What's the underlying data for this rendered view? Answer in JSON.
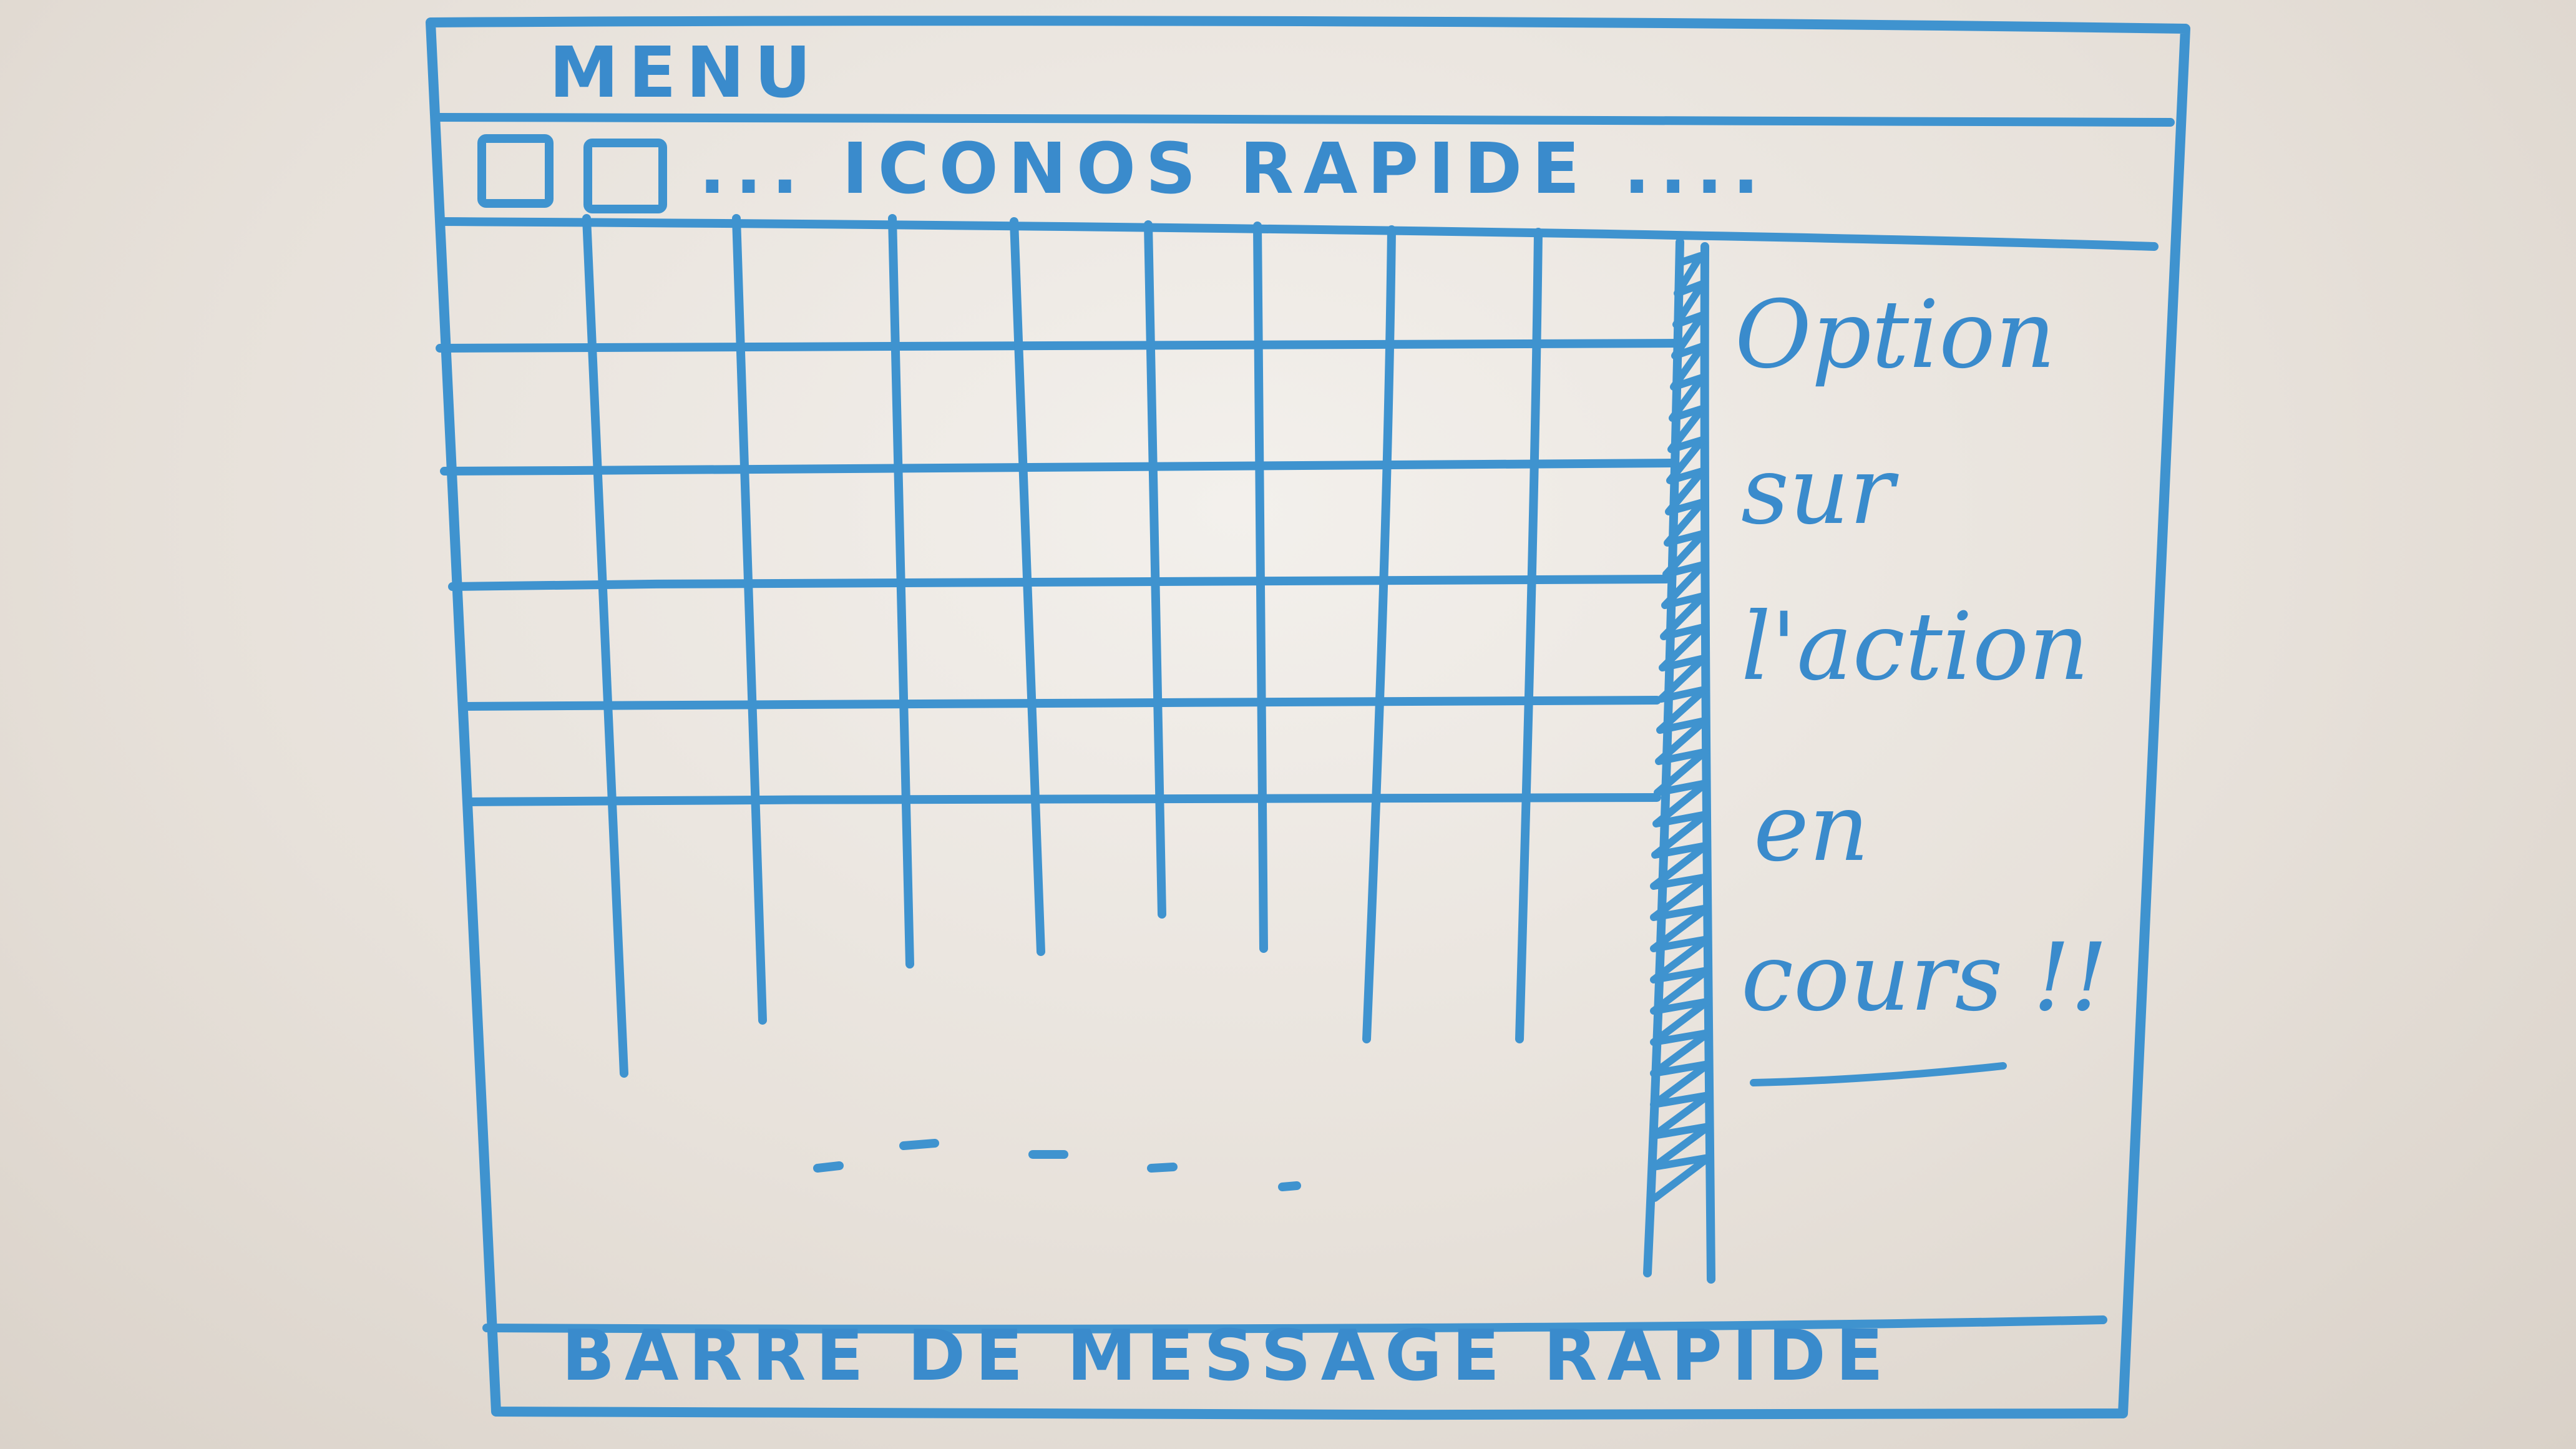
{
  "menu_bar": {
    "label": "MENU"
  },
  "toolbar": {
    "label": "... ICONOS RAPIDE ...."
  },
  "grid": {
    "more_rows_indicator": "- - - - -"
  },
  "side_panel": {
    "lines": [
      "Option",
      "sur",
      "l'action",
      "en",
      "cours !!"
    ]
  },
  "status_bar": {
    "label": "BARRE DE MESSAGE RAPIDE"
  },
  "colors": {
    "ink": "#3f93cf",
    "board": "#e7e1da"
  }
}
